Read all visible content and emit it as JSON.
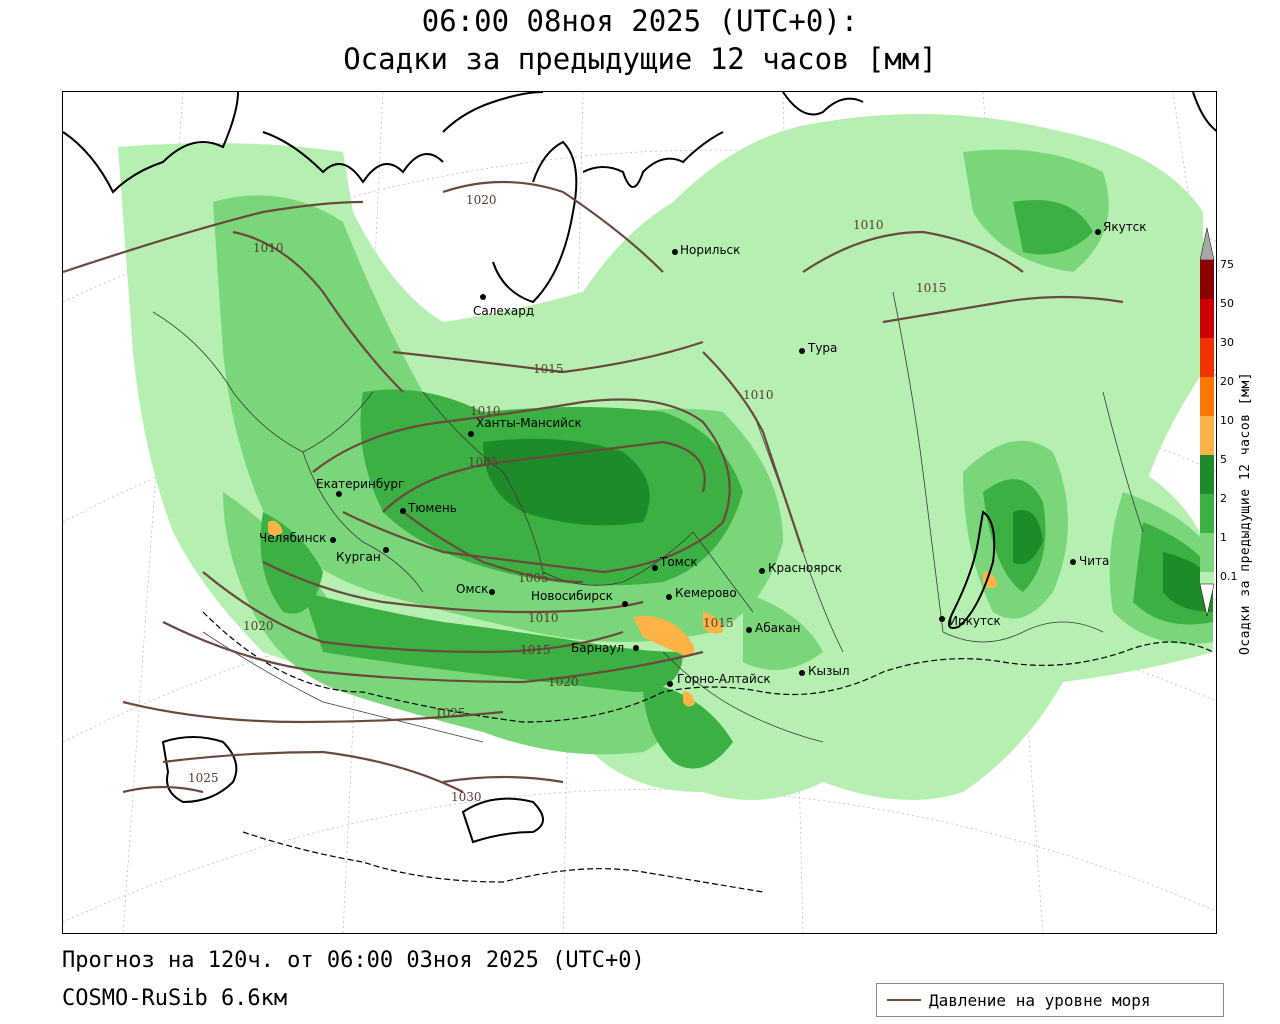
{
  "header": {
    "title_line1": "06:00 08ноя 2025 (UTC+0):",
    "title_line2": "Осадки за предыдущие 12 часов [мм]"
  },
  "footer": {
    "forecast": "Прогноз на 120ч. от 06:00 03ноя 2025 (UTC+0)",
    "model": "COSMO-RuSib 6.6км"
  },
  "legend": {
    "title": "Осадки за предыдущие 12 часов [мм]",
    "levels": [
      "75",
      "50",
      "30",
      "20",
      "10",
      "5",
      "2",
      "1",
      "0.1"
    ],
    "colors": {
      "top_arrow": "#a8a8a8",
      "c75": "#8b0000",
      "c50": "#cc0000",
      "c30": "#ee3300",
      "c20": "#ff7700",
      "c10": "#ffb347",
      "c5": "#1f8a2a",
      "c2": "#3cb043",
      "c1": "#7ad67a",
      "c01": "#b5f0b0",
      "bottom_arrow": "#ffffff"
    }
  },
  "pressure_legend": {
    "label": "Давление на уровне моря",
    "color": "#6b4a3e"
  },
  "map": {
    "cities": [
      "Норильск",
      "Якутск",
      "Салехард",
      "Тура",
      "Ханты-Мансийск",
      "Екатеринбург",
      "Тюмень",
      "Челябинск",
      "Курган",
      "Омск",
      "Томск",
      "Красноярск",
      "Новосибирск",
      "Кемерово",
      "Абакан",
      "Барнаул",
      "Иркутск",
      "Чита",
      "Кызыл",
      "Горно-Алтайск"
    ],
    "isobars": [
      "1020",
      "1010",
      "1010",
      "1015",
      "1015",
      "1010",
      "1005",
      "1010",
      "1005",
      "1010",
      "1015",
      "1015",
      "1020",
      "1020",
      "1025",
      "1025",
      "1030"
    ]
  }
}
